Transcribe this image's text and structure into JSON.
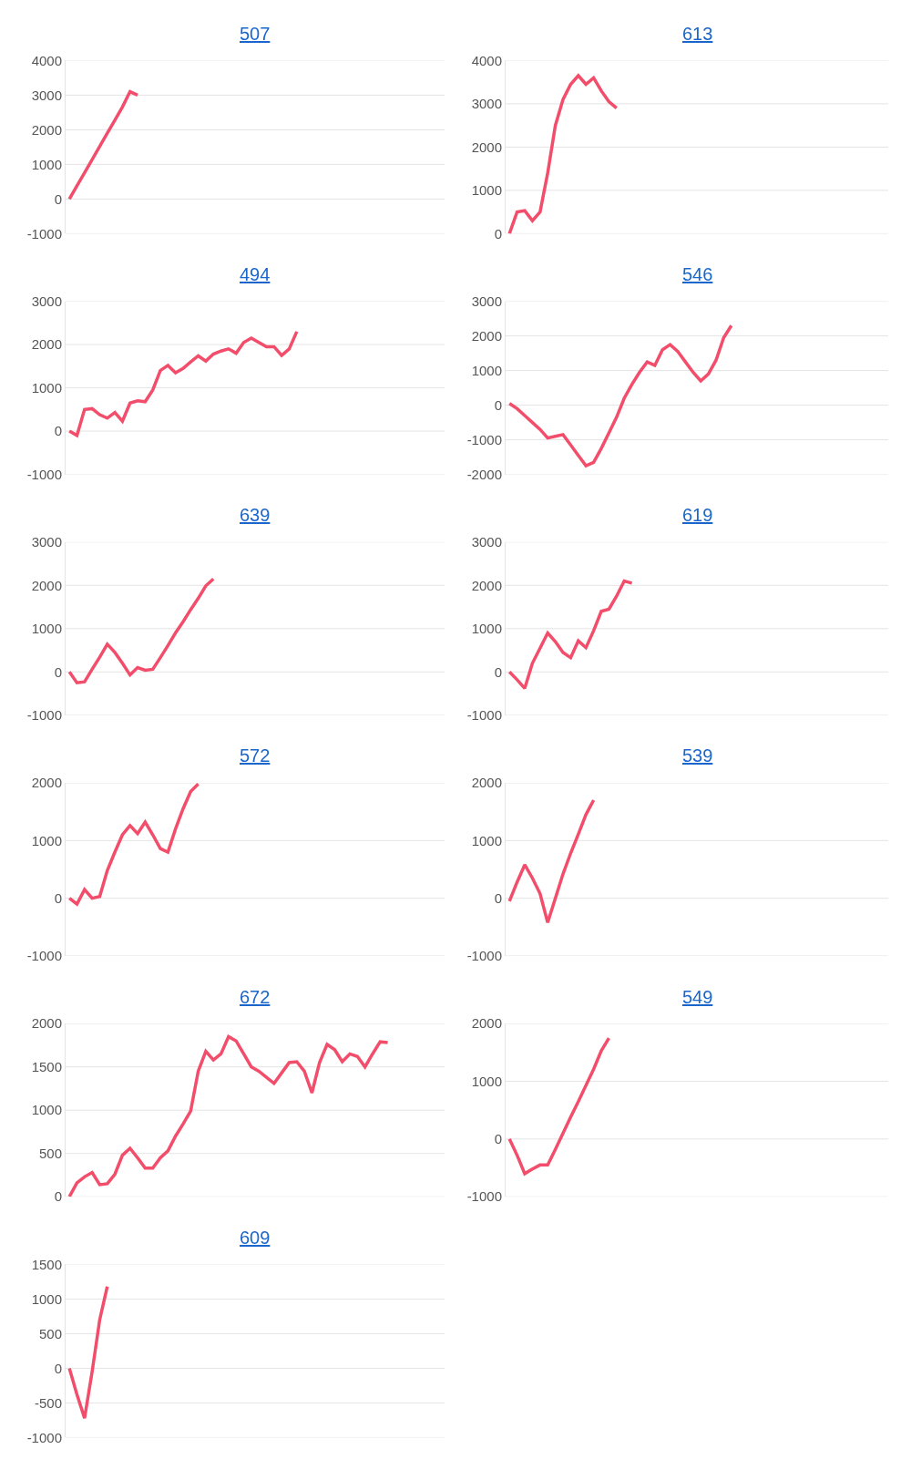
{
  "chart_data": [
    {
      "type": "line",
      "title": "507",
      "color": "#f24e6b",
      "grid": "y",
      "ylim": [
        -1000,
        4000
      ],
      "yticks": [
        -1000,
        0,
        1000,
        2000,
        3000,
        4000
      ],
      "categories": [
        null,
        null,
        null,
        null,
        null,
        null,
        null,
        null,
        null,
        null,
        null,
        null,
        null,
        null,
        null,
        null,
        null,
        null,
        null,
        null,
        null,
        null,
        null,
        null,
        null,
        null,
        null,
        null,
        null,
        null,
        null,
        null,
        null,
        null,
        null,
        null,
        null,
        null,
        null,
        null,
        null,
        null,
        null,
        null,
        null,
        null,
        null,
        null,
        null,
        null
      ],
      "values": [
        0,
        380,
        760,
        1140,
        1520,
        1900,
        2280,
        2660,
        3100,
        3000,
        null,
        null,
        null,
        null,
        null,
        null,
        null,
        null,
        null,
        null,
        null,
        null,
        null,
        null,
        null,
        null,
        null,
        null,
        null,
        null,
        null,
        null,
        null,
        null,
        null,
        null,
        null,
        null,
        null,
        null,
        null,
        null,
        null,
        null,
        null,
        null,
        null,
        null,
        null,
        null
      ]
    },
    {
      "type": "line",
      "title": "613",
      "color": "#f24e6b",
      "grid": "y",
      "ylim": [
        0,
        4000
      ],
      "yticks": [
        0,
        1000,
        2000,
        3000,
        4000
      ],
      "categories": [
        null,
        null,
        null,
        null,
        null,
        null,
        null,
        null,
        null,
        null,
        null,
        null,
        null,
        null,
        null,
        null,
        null,
        null,
        null,
        null,
        null,
        null,
        null,
        null,
        null,
        null,
        null,
        null,
        null,
        null,
        null,
        null,
        null,
        null,
        null,
        null,
        null,
        null,
        null,
        null,
        null,
        null,
        null,
        null,
        null,
        null,
        null,
        null,
        null,
        null
      ],
      "values": [
        0,
        500,
        530,
        300,
        500,
        1400,
        2500,
        3100,
        3450,
        3650,
        3450,
        3600,
        3300,
        3050,
        2900,
        null,
        null,
        null,
        null,
        null,
        null,
        null,
        null,
        null,
        null,
        null,
        null,
        null,
        null,
        null,
        null,
        null,
        null,
        null,
        null,
        null,
        null,
        null,
        null,
        null,
        null,
        null,
        null,
        null,
        null,
        null,
        null,
        null,
        null,
        null
      ]
    },
    {
      "type": "line",
      "title": "494",
      "color": "#f24e6b",
      "grid": "y",
      "ylim": [
        -1000,
        3000
      ],
      "yticks": [
        -1000,
        0,
        1000,
        2000,
        3000
      ],
      "categories": [
        null,
        null,
        null,
        null,
        null,
        null,
        null,
        null,
        null,
        null,
        null,
        null,
        null,
        null,
        null,
        null,
        null,
        null,
        null,
        null,
        null,
        null,
        null,
        null,
        null,
        null,
        null,
        null,
        null,
        null,
        null,
        null,
        null,
        null,
        null,
        null,
        null,
        null,
        null,
        null,
        null,
        null,
        null,
        null,
        null,
        null,
        null,
        null,
        null,
        null
      ],
      "values": [
        0,
        -100,
        500,
        520,
        380,
        300,
        430,
        230,
        650,
        700,
        680,
        950,
        1400,
        1520,
        1350,
        1450,
        1600,
        1740,
        1620,
        1780,
        1850,
        1900,
        1800,
        2050,
        2150,
        2050,
        1950,
        1950,
        1750,
        1900,
        2300,
        null,
        null,
        null,
        null,
        null,
        null,
        null,
        null,
        null,
        null,
        null,
        null,
        null,
        null,
        null,
        null,
        null,
        null,
        null
      ]
    },
    {
      "type": "line",
      "title": "546",
      "color": "#f24e6b",
      "grid": "y",
      "ylim": [
        -2000,
        3000
      ],
      "yticks": [
        -2000,
        -1000,
        0,
        1000,
        2000,
        3000
      ],
      "categories": [
        null,
        null,
        null,
        null,
        null,
        null,
        null,
        null,
        null,
        null,
        null,
        null,
        null,
        null,
        null,
        null,
        null,
        null,
        null,
        null,
        null,
        null,
        null,
        null,
        null,
        null,
        null,
        null,
        null,
        null,
        null,
        null,
        null,
        null,
        null,
        null,
        null,
        null,
        null,
        null,
        null,
        null,
        null,
        null,
        null,
        null,
        null,
        null,
        null,
        null
      ],
      "values": [
        50,
        -100,
        -300,
        -500,
        -700,
        -950,
        -900,
        -850,
        -1150,
        -1450,
        -1750,
        -1650,
        -1250,
        -800,
        -350,
        200,
        600,
        950,
        1250,
        1150,
        1600,
        1750,
        1550,
        1250,
        950,
        700,
        900,
        1300,
        1950,
        2300,
        null,
        null,
        null,
        null,
        null,
        null,
        null,
        null,
        null,
        null,
        null,
        null,
        null,
        null,
        null,
        null,
        null,
        null,
        null,
        null
      ]
    },
    {
      "type": "line",
      "title": "639",
      "color": "#f24e6b",
      "grid": "y",
      "ylim": [
        -1000,
        3000
      ],
      "yticks": [
        -1000,
        0,
        1000,
        2000,
        3000
      ],
      "categories": [
        null,
        null,
        null,
        null,
        null,
        null,
        null,
        null,
        null,
        null,
        null,
        null,
        null,
        null,
        null,
        null,
        null,
        null,
        null,
        null,
        null,
        null,
        null,
        null,
        null,
        null,
        null,
        null,
        null,
        null,
        null,
        null,
        null,
        null,
        null,
        null,
        null,
        null,
        null,
        null,
        null,
        null,
        null,
        null,
        null,
        null,
        null,
        null,
        null,
        null
      ],
      "values": [
        0,
        -250,
        -230,
        60,
        340,
        640,
        450,
        200,
        -70,
        100,
        40,
        60,
        330,
        610,
        900,
        1160,
        1440,
        1700,
        1990,
        2150,
        null,
        null,
        null,
        null,
        null,
        null,
        null,
        null,
        null,
        null,
        null,
        null,
        null,
        null,
        null,
        null,
        null,
        null,
        null,
        null,
        null,
        null,
        null,
        null,
        null,
        null,
        null,
        null,
        null,
        null
      ]
    },
    {
      "type": "line",
      "title": "619",
      "color": "#f24e6b",
      "grid": "y",
      "ylim": [
        -1000,
        3000
      ],
      "yticks": [
        -1000,
        0,
        1000,
        2000,
        3000
      ],
      "categories": [
        null,
        null,
        null,
        null,
        null,
        null,
        null,
        null,
        null,
        null,
        null,
        null,
        null,
        null,
        null,
        null,
        null,
        null,
        null,
        null,
        null,
        null,
        null,
        null,
        null,
        null,
        null,
        null,
        null,
        null,
        null,
        null,
        null,
        null,
        null,
        null,
        null,
        null,
        null,
        null,
        null,
        null,
        null,
        null,
        null,
        null,
        null,
        null,
        null,
        null
      ],
      "values": [
        0,
        -180,
        -380,
        200,
        550,
        900,
        700,
        450,
        330,
        720,
        560,
        950,
        1400,
        1450,
        1750,
        2100,
        2050,
        null,
        null,
        null,
        null,
        null,
        null,
        null,
        null,
        null,
        null,
        null,
        null,
        null,
        null,
        null,
        null,
        null,
        null,
        null,
        null,
        null,
        null,
        null,
        null,
        null,
        null,
        null,
        null,
        null,
        null,
        null,
        null,
        null
      ]
    },
    {
      "type": "line",
      "title": "572",
      "color": "#f24e6b",
      "grid": "y",
      "ylim": [
        -1000,
        2000
      ],
      "yticks": [
        -1000,
        0,
        1000,
        2000
      ],
      "categories": [
        null,
        null,
        null,
        null,
        null,
        null,
        null,
        null,
        null,
        null,
        null,
        null,
        null,
        null,
        null,
        null,
        null,
        null,
        null,
        null,
        null,
        null,
        null,
        null,
        null,
        null,
        null,
        null,
        null,
        null,
        null,
        null,
        null,
        null,
        null,
        null,
        null,
        null,
        null,
        null,
        null,
        null,
        null,
        null,
        null,
        null,
        null,
        null,
        null,
        null
      ],
      "values": [
        0,
        -100,
        150,
        0,
        30,
        480,
        800,
        1100,
        1260,
        1120,
        1320,
        1100,
        860,
        800,
        1200,
        1550,
        1850,
        1980,
        null,
        null,
        null,
        null,
        null,
        null,
        null,
        null,
        null,
        null,
        null,
        null,
        null,
        null,
        null,
        null,
        null,
        null,
        null,
        null,
        null,
        null,
        null,
        null,
        null,
        null,
        null,
        null,
        null,
        null,
        null,
        null
      ]
    },
    {
      "type": "line",
      "title": "539",
      "color": "#f24e6b",
      "grid": "y",
      "ylim": [
        -1000,
        2000
      ],
      "yticks": [
        -1000,
        0,
        1000,
        2000
      ],
      "categories": [
        null,
        null,
        null,
        null,
        null,
        null,
        null,
        null,
        null,
        null,
        null,
        null,
        null,
        null,
        null,
        null,
        null,
        null,
        null,
        null,
        null,
        null,
        null,
        null,
        null,
        null,
        null,
        null,
        null,
        null,
        null,
        null,
        null,
        null,
        null,
        null,
        null,
        null,
        null,
        null,
        null,
        null,
        null,
        null,
        null,
        null,
        null,
        null,
        null,
        null
      ],
      "values": [
        -50,
        280,
        580,
        350,
        80,
        -420,
        0,
        420,
        780,
        1110,
        1450,
        1700,
        null,
        null,
        null,
        null,
        null,
        null,
        null,
        null,
        null,
        null,
        null,
        null,
        null,
        null,
        null,
        null,
        null,
        null,
        null,
        null,
        null,
        null,
        null,
        null,
        null,
        null,
        null,
        null,
        null,
        null,
        null,
        null,
        null,
        null,
        null,
        null,
        null,
        null
      ]
    },
    {
      "type": "line",
      "title": "672",
      "color": "#f24e6b",
      "grid": "y",
      "ylim": [
        0,
        2000
      ],
      "yticks": [
        0,
        500,
        1000,
        1500,
        2000
      ],
      "categories": [
        null,
        null,
        null,
        null,
        null,
        null,
        null,
        null,
        null,
        null,
        null,
        null,
        null,
        null,
        null,
        null,
        null,
        null,
        null,
        null,
        null,
        null,
        null,
        null,
        null,
        null,
        null,
        null,
        null,
        null,
        null,
        null,
        null,
        null,
        null,
        null,
        null,
        null,
        null,
        null,
        null,
        null,
        null,
        null,
        null,
        null,
        null,
        null,
        null,
        null
      ],
      "values": [
        0,
        160,
        230,
        280,
        140,
        150,
        260,
        480,
        560,
        450,
        330,
        330,
        450,
        530,
        700,
        840,
        990,
        1450,
        1680,
        1580,
        1650,
        1850,
        1800,
        1650,
        1500,
        1450,
        1380,
        1310,
        1430,
        1550,
        1560,
        1450,
        1200,
        1550,
        1760,
        1700,
        1560,
        1650,
        1620,
        1500,
        1650,
        1790,
        1780,
        null,
        null,
        null,
        null,
        null,
        null,
        null
      ]
    },
    {
      "type": "line",
      "title": "549",
      "color": "#f24e6b",
      "grid": "y",
      "ylim": [
        -1000,
        2000
      ],
      "yticks": [
        -1000,
        0,
        1000,
        2000
      ],
      "categories": [
        null,
        null,
        null,
        null,
        null,
        null,
        null,
        null,
        null,
        null,
        null,
        null,
        null,
        null,
        null,
        null,
        null,
        null,
        null,
        null,
        null,
        null,
        null,
        null,
        null,
        null,
        null,
        null,
        null,
        null,
        null,
        null,
        null,
        null,
        null,
        null,
        null,
        null,
        null,
        null,
        null,
        null,
        null,
        null,
        null,
        null,
        null,
        null,
        null,
        null
      ],
      "values": [
        0,
        -280,
        -600,
        -520,
        -450,
        -450,
        -180,
        100,
        380,
        650,
        930,
        1210,
        1530,
        1750,
        null,
        null,
        null,
        null,
        null,
        null,
        null,
        null,
        null,
        null,
        null,
        null,
        null,
        null,
        null,
        null,
        null,
        null,
        null,
        null,
        null,
        null,
        null,
        null,
        null,
        null,
        null,
        null,
        null,
        null,
        null,
        null,
        null,
        null,
        null,
        null
      ]
    },
    {
      "type": "line",
      "title": "609",
      "color": "#f24e6b",
      "grid": "y",
      "ylim": [
        -1000,
        1500
      ],
      "yticks": [
        -1000,
        -500,
        0,
        500,
        1000,
        1500
      ],
      "categories": [
        null,
        null,
        null,
        null,
        null,
        null,
        null,
        null,
        null,
        null,
        null,
        null,
        null,
        null,
        null,
        null,
        null,
        null,
        null,
        null,
        null,
        null,
        null,
        null,
        null,
        null,
        null,
        null,
        null,
        null,
        null,
        null,
        null,
        null,
        null,
        null,
        null,
        null,
        null,
        null,
        null,
        null,
        null,
        null,
        null,
        null,
        null,
        null,
        null,
        null
      ],
      "values": [
        0,
        -380,
        -720,
        -50,
        700,
        1180,
        null,
        null,
        null,
        null,
        null,
        null,
        null,
        null,
        null,
        null,
        null,
        null,
        null,
        null,
        null,
        null,
        null,
        null,
        null,
        null,
        null,
        null,
        null,
        null,
        null,
        null,
        null,
        null,
        null,
        null,
        null,
        null,
        null,
        null,
        null,
        null,
        null,
        null,
        null,
        null,
        null,
        null,
        null,
        null
      ]
    }
  ]
}
